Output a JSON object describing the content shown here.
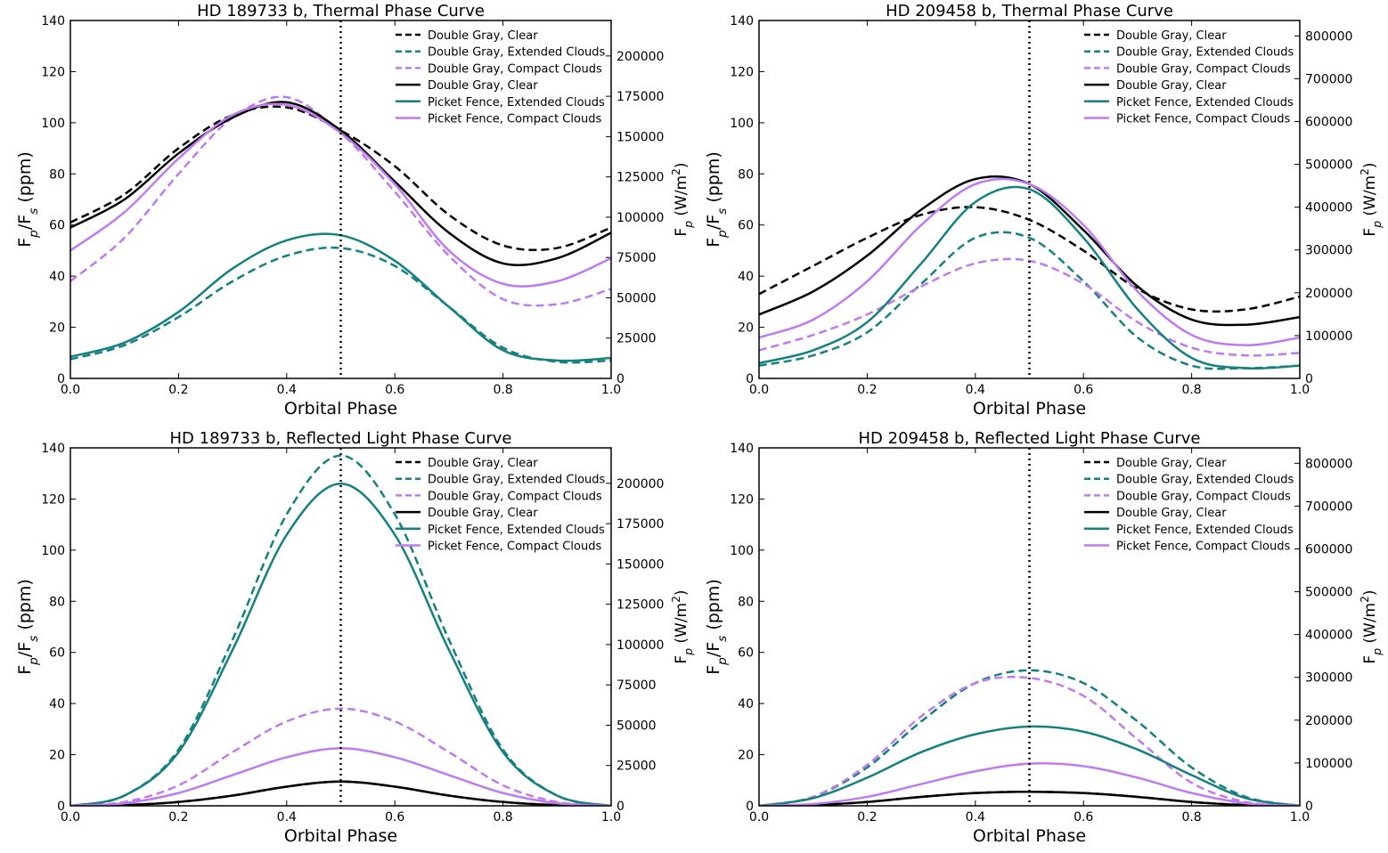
{
  "chart_data": [
    {
      "type": "line",
      "title": "HD 189733 b, Thermal Phase Curve",
      "xlabel": "Orbital Phase",
      "ylabel": "F_p/F_s (ppm)",
      "ylabel_right": "F_p (W/m^2)",
      "xlim": [
        0,
        1
      ],
      "ylim": [
        0,
        140
      ],
      "ylim_right": [
        0,
        222000
      ],
      "xticks": [
        "0.0",
        "0.2",
        "0.4",
        "0.6",
        "0.8",
        "1.0"
      ],
      "yticks": [
        "0",
        "20",
        "40",
        "60",
        "80",
        "100",
        "120",
        "140"
      ],
      "yticks_right": [
        "0",
        "25000",
        "50000",
        "75000",
        "100000",
        "125000",
        "150000",
        "175000",
        "200000"
      ],
      "vline": 0.5,
      "legend_position": "top-right",
      "x": [
        0.0,
        0.1,
        0.2,
        0.3,
        0.4,
        0.5,
        0.6,
        0.7,
        0.8,
        0.9,
        1.0
      ],
      "series": [
        {
          "name": "Double Gray, Clear",
          "color": "#000000",
          "dash": true,
          "values": [
            61,
            72,
            90,
            103,
            106,
            97,
            83,
            64,
            52,
            51,
            59
          ]
        },
        {
          "name": "Double Gray, Extended Clouds",
          "color": "#148080",
          "dash": true,
          "values": [
            7.5,
            13,
            24,
            38,
            48,
            51,
            44,
            28,
            12,
            6.5,
            7
          ]
        },
        {
          "name": "Double Gray, Compact Clouds",
          "color": "#c07af0",
          "dash": true,
          "values": [
            38,
            55,
            80,
            102,
            110,
            96,
            73,
            48,
            31,
            29,
            35
          ]
        },
        {
          "name": "Double Gray, Clear",
          "color": "#000000",
          "dash": false,
          "values": [
            59,
            70,
            88,
            102,
            108,
            97,
            77,
            57,
            45,
            47,
            57
          ]
        },
        {
          "name": "Picket Fence, Extended Clouds",
          "color": "#148080",
          "dash": false,
          "values": [
            8.5,
            14,
            26,
            43,
            54,
            56,
            46,
            28,
            11,
            7,
            8
          ]
        },
        {
          "name": "Picket Fence, Compact Clouds",
          "color": "#c07af0",
          "dash": false,
          "values": [
            50,
            65,
            86,
            103,
            107,
            96,
            76,
            50,
            37,
            38,
            47
          ]
        }
      ]
    },
    {
      "type": "line",
      "title": "HD 209458 b, Thermal Phase Curve",
      "xlabel": "Orbital Phase",
      "ylabel": "F_p/F_s (ppm)",
      "ylabel_right": "F_p (W/m^2)",
      "xlim": [
        0,
        1
      ],
      "ylim": [
        0,
        140
      ],
      "ylim_right": [
        0,
        836000
      ],
      "xticks": [
        "0.0",
        "0.2",
        "0.4",
        "0.6",
        "0.8",
        "1.0"
      ],
      "yticks": [
        "0",
        "20",
        "40",
        "60",
        "80",
        "100",
        "120",
        "140"
      ],
      "yticks_right": [
        "0",
        "100000",
        "200000",
        "300000",
        "400000",
        "500000",
        "600000",
        "700000",
        "800000"
      ],
      "vline": 0.5,
      "legend_position": "top-right",
      "x": [
        0.0,
        0.1,
        0.2,
        0.3,
        0.4,
        0.5,
        0.6,
        0.7,
        0.8,
        0.9,
        1.0
      ],
      "series": [
        {
          "name": "Double Gray, Clear",
          "color": "#000000",
          "dash": true,
          "values": [
            33,
            44,
            55,
            64,
            67,
            62,
            50,
            35,
            27,
            27,
            32
          ]
        },
        {
          "name": "Double Gray, Extended Clouds",
          "color": "#148080",
          "dash": true,
          "values": [
            5,
            9,
            18,
            37,
            55,
            55,
            38,
            16,
            5,
            4,
            5
          ]
        },
        {
          "name": "Double Gray, Compact Clouds",
          "color": "#c07af0",
          "dash": true,
          "values": [
            11,
            17,
            25,
            36,
            45,
            46,
            37,
            22,
            12,
            9,
            10
          ]
        },
        {
          "name": "Double Gray, Clear",
          "color": "#000000",
          "dash": false,
          "values": [
            25,
            34,
            48,
            66,
            78,
            76,
            58,
            36,
            23,
            21,
            24
          ]
        },
        {
          "name": "Picket Fence, Extended Clouds",
          "color": "#148080",
          "dash": false,
          "values": [
            6,
            11,
            22,
            45,
            69,
            74,
            55,
            27,
            8,
            4,
            5
          ]
        },
        {
          "name": "Picket Fence, Compact Clouds",
          "color": "#c07af0",
          "dash": false,
          "values": [
            16,
            23,
            38,
            60,
            76,
            76,
            60,
            34,
            17,
            13,
            16
          ]
        }
      ]
    },
    {
      "type": "line",
      "title": "HD 189733 b, Reflected Light Phase Curve",
      "xlabel": "Orbital Phase",
      "ylabel": "F_p/F_s (ppm)",
      "ylabel_right": "F_p (W/m^2)",
      "xlim": [
        0,
        1
      ],
      "ylim": [
        0,
        140
      ],
      "ylim_right": [
        0,
        222000
      ],
      "xticks": [
        "0.0",
        "0.2",
        "0.4",
        "0.6",
        "0.8",
        "1.0"
      ],
      "yticks": [
        "0",
        "20",
        "40",
        "60",
        "80",
        "100",
        "120",
        "140"
      ],
      "yticks_right": [
        "0",
        "25000",
        "50000",
        "75000",
        "100000",
        "125000",
        "150000",
        "175000",
        "200000"
      ],
      "vline": 0.5,
      "legend_position": "top-right",
      "x": [
        0.0,
        0.1,
        0.2,
        0.3,
        0.4,
        0.5,
        0.6,
        0.7,
        0.8,
        0.9,
        1.0
      ],
      "series": [
        {
          "name": "Double Gray, Clear",
          "color": "#000000",
          "dash": true,
          "values": [
            0,
            0.3,
            1.5,
            4,
            7.5,
            9.5,
            7.5,
            4,
            1.5,
            0.3,
            0
          ]
        },
        {
          "name": "Double Gray, Extended Clouds",
          "color": "#148080",
          "dash": true,
          "values": [
            0,
            4,
            22,
            65,
            114,
            137,
            114,
            65,
            22,
            4,
            0
          ]
        },
        {
          "name": "Double Gray, Compact Clouds",
          "color": "#c07af0",
          "dash": true,
          "values": [
            0,
            1.5,
            8,
            21,
            33,
            38,
            33,
            21,
            8,
            1.5,
            0
          ]
        },
        {
          "name": "Double Gray, Clear",
          "color": "#000000",
          "dash": false,
          "values": [
            0,
            0.3,
            1.5,
            4,
            7.5,
            9.5,
            7.5,
            4,
            1.5,
            0.3,
            0
          ]
        },
        {
          "name": "Picket Fence, Extended Clouds",
          "color": "#148080",
          "dash": false,
          "values": [
            0,
            4,
            21,
            61,
            106,
            126,
            106,
            61,
            21,
            4,
            0
          ]
        },
        {
          "name": "Picket Fence, Compact Clouds",
          "color": "#c07af0",
          "dash": false,
          "values": [
            0,
            1,
            5,
            12,
            19,
            22.5,
            19,
            12,
            5,
            1,
            0
          ]
        }
      ]
    },
    {
      "type": "line",
      "title": "HD 209458 b, Reflected Light Phase Curve",
      "xlabel": "Orbital Phase",
      "ylabel": "F_p/F_s (ppm)",
      "ylabel_right": "F_p (W/m^2)",
      "xlim": [
        0,
        1
      ],
      "ylim": [
        0,
        140
      ],
      "ylim_right": [
        0,
        836000
      ],
      "xticks": [
        "0.0",
        "0.2",
        "0.4",
        "0.6",
        "0.8",
        "1.0"
      ],
      "yticks": [
        "0",
        "20",
        "40",
        "60",
        "80",
        "100",
        "120",
        "140"
      ],
      "yticks_right": [
        "0",
        "100000",
        "200000",
        "300000",
        "400000",
        "500000",
        "600000",
        "700000",
        "800000"
      ],
      "vline": 0.5,
      "legend_position": "top-right",
      "x": [
        0.0,
        0.1,
        0.2,
        0.3,
        0.4,
        0.5,
        0.6,
        0.7,
        0.8,
        0.9,
        1.0
      ],
      "series": [
        {
          "name": "Double Gray, Clear",
          "color": "#000000",
          "dash": true,
          "values": [
            0,
            0.3,
            1.5,
            3.5,
            5,
            5.5,
            5,
            3.5,
            1.5,
            0.3,
            0
          ]
        },
        {
          "name": "Double Gray, Extended Clouds",
          "color": "#148080",
          "dash": true,
          "values": [
            0,
            3.5,
            15,
            33,
            48,
            53,
            48,
            33,
            15,
            3.5,
            0
          ]
        },
        {
          "name": "Double Gray, Compact Clouds",
          "color": "#c07af0",
          "dash": true,
          "values": [
            0,
            3.5,
            16,
            35,
            48,
            50,
            43,
            26,
            9,
            1.5,
            0
          ]
        },
        {
          "name": "Double Gray, Clear",
          "color": "#000000",
          "dash": false,
          "values": [
            0,
            0.3,
            1.5,
            3.5,
            5,
            5.5,
            5,
            3.5,
            1.5,
            0.3,
            0
          ]
        },
        {
          "name": "Picket Fence, Extended Clouds",
          "color": "#148080",
          "dash": false,
          "values": [
            0,
            3,
            11,
            21,
            28,
            31,
            29,
            22,
            12,
            3,
            0
          ]
        },
        {
          "name": "Picket Fence, Compact Clouds",
          "color": "#c07af0",
          "dash": false,
          "values": [
            0,
            0.7,
            3.5,
            8.5,
            13.5,
            16.5,
            15.5,
            11,
            5,
            1,
            0
          ]
        }
      ]
    }
  ]
}
